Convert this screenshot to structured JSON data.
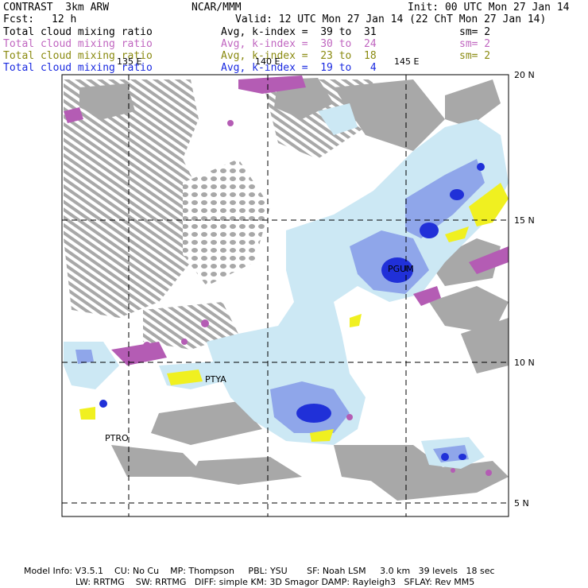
{
  "header": {
    "model_name": "CONTRAST  3km ARW",
    "center": "NCAR/MMM",
    "init": "Init: 00 UTC Mon 27 Jan 14",
    "fcst_label": "Fcst:",
    "fcst_value": "12 h",
    "valid": "Valid: 12 UTC Mon 27 Jan 14 (22 ChT Mon 27 Jan 14)"
  },
  "fields": [
    {
      "name": "Total cloud mixing ratio",
      "stat": "Avg, k-index =  39 to  31",
      "sm": "sm= 2",
      "color": "#000000"
    },
    {
      "name": "Total cloud mixing ratio",
      "stat": "Avg, k-index =  30 to  24",
      "sm": "sm= 2",
      "color": "#c066c0"
    },
    {
      "name": "Total cloud mixing ratio",
      "stat": "Avg, k-index =  23 to  18",
      "sm": "sm= 2",
      "color": "#8a8a10"
    },
    {
      "name": "Total cloud mixing ratio",
      "stat": "Avg, k-index =  19 to   4",
      "sm": "",
      "color": "#1a2ae0"
    }
  ],
  "map": {
    "lon_labels": [
      "135 E",
      "140 E",
      "145 E"
    ],
    "lat_labels": [
      "20 N",
      "15 N",
      "10 N",
      "5 N"
    ],
    "stations": [
      "PGUM",
      "PTYA",
      "PTRO"
    ]
  },
  "footer": {
    "line1": "Model Info: V3.5.1    CU: No Cu    MP: Thompson     PBL: YSU       SF: Noah LSM     3.0 km   39 levels   18 sec",
    "line2": "LW: RRTMG    SW: RRTMG   DIFF: simple KM: 3D Smagor DAMP: Rayleigh3   SFLAY: Rev MM5"
  },
  "colors": {
    "gray_cloud": "#a8a8a8",
    "purple_cloud": "#b45cb4",
    "yellow_cloud": "#f0f020",
    "light_blue": "#cce8f4",
    "mid_blue": "#7890e0",
    "dark_blue": "#2030d8"
  }
}
